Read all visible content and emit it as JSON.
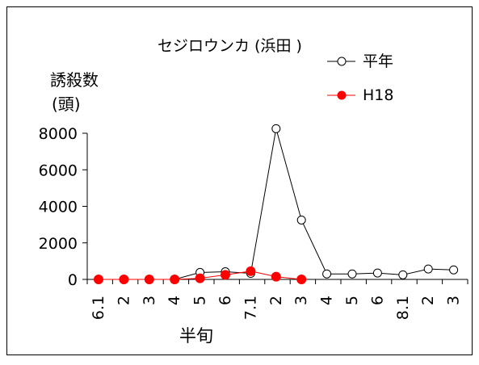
{
  "chart_data": {
    "type": "line",
    "title": "セジロウンカ (浜田 )",
    "ylabel_line1": "誘殺数",
    "ylabel_line2": "(頭)",
    "xlabel": "半旬",
    "categories": [
      "6.1",
      "2",
      "3",
      "4",
      "5",
      "6",
      "7.1",
      "2",
      "3",
      "4",
      "5",
      "6",
      "8.1",
      "2",
      "3"
    ],
    "ylim": [
      0,
      8000
    ],
    "yticks": [
      0,
      2000,
      4000,
      6000,
      8000
    ],
    "grid": false,
    "legend_position": "top-right",
    "series": [
      {
        "name": "平年",
        "color": "#000000",
        "marker": "open-circle",
        "values": [
          0,
          0,
          0,
          0,
          380,
          420,
          330,
          8250,
          3250,
          300,
          300,
          350,
          250,
          570,
          520
        ]
      },
      {
        "name": "H18",
        "color": "#ff0000",
        "marker": "filled-circle",
        "values": [
          0,
          0,
          0,
          0,
          60,
          250,
          450,
          150,
          0,
          null,
          null,
          null,
          null,
          null,
          null
        ]
      }
    ]
  }
}
